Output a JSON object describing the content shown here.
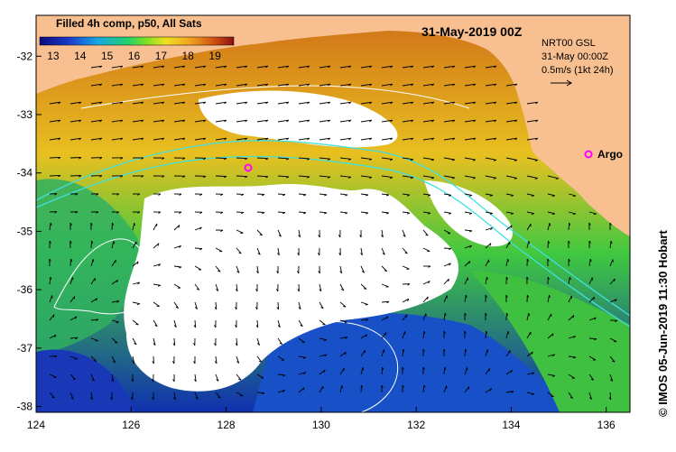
{
  "header": {
    "product_title": "Filled 4h comp, p50, All Sats",
    "date_label": "31-May-2019 00Z"
  },
  "colorbar": {
    "tick_labels": [
      "13",
      "14",
      "15",
      "16",
      "17",
      "18",
      "19"
    ],
    "range": [
      12.5,
      19.7
    ]
  },
  "current_info": {
    "source_label": "NRT00 GSL",
    "time_label": "31-May 00:00Z",
    "scale_label": "0.5m/s (1kt 24h)"
  },
  "marker": {
    "label": "Argo"
  },
  "credit": "© IMOS 05-Jun-2019 11:30 Hobart",
  "axes": {
    "lon_ticks": [
      "124",
      "126",
      "128",
      "130",
      "132",
      "134",
      "136"
    ],
    "lat_ticks": [
      "-32",
      "-33",
      "-34",
      "-35",
      "-36",
      "-37",
      "-38"
    ],
    "lon_range": [
      124,
      136.5
    ],
    "lat_range": [
      -38.1,
      -31.3
    ]
  },
  "colors": {
    "land": "#f8c090",
    "argo_marker": "#ff00ff",
    "contour_cyan": "#40e0e0",
    "contour_white": "#ffffff",
    "arrow": "#000000"
  }
}
